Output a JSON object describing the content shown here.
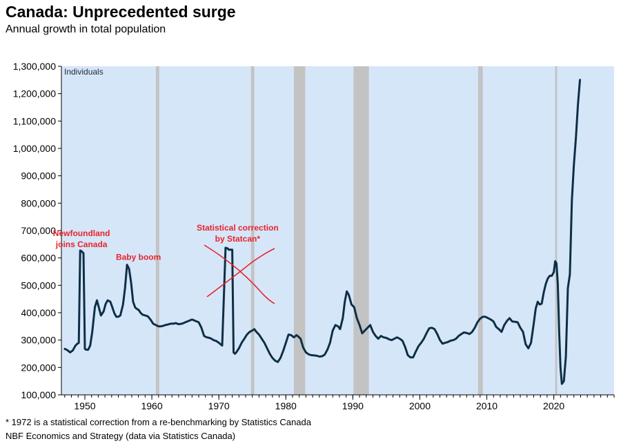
{
  "header": {
    "title": "Canada: Unprecedented surge",
    "subtitle": "Annual growth in total population"
  },
  "footer": {
    "note": "* 1972 is a statistical correction from a re-benchmarking by Statistics Canada",
    "source": "NBF Economics and Strategy (data via Statistics Canada)"
  },
  "colors": {
    "plot_background": "#d6e6f9",
    "recession_band": "#c3c3c3",
    "line": "#0d2f45",
    "annotation": "#e8232a"
  },
  "chart_data": {
    "type": "line",
    "title": "Canada: Unprecedented surge",
    "subtitle": "Annual growth in total population",
    "ylabel": "Individuals",
    "xlim": [
      1946.5,
      2029
    ],
    "ylim": [
      100000,
      1300000
    ],
    "x_ticks": [
      1950,
      1960,
      1970,
      1980,
      1990,
      2000,
      2010,
      2020
    ],
    "y_ticks": [
      100000,
      200000,
      300000,
      400000,
      500000,
      600000,
      700000,
      800000,
      900000,
      1000000,
      1100000,
      1200000,
      1300000
    ],
    "y_tick_labels": [
      "100,000",
      "200,000",
      "300,000",
      "400,000",
      "500,000",
      "600,000",
      "700,000",
      "800,000",
      "900,000",
      "1,000,000",
      "1,100,000",
      "1,200,000",
      "1,300,000"
    ],
    "grid": false,
    "recession_bands": [
      [
        1960.6,
        1961.1
      ],
      [
        1974.8,
        1975.3
      ],
      [
        1981.2,
        1982.9
      ],
      [
        1990.1,
        1992.4
      ],
      [
        2008.7,
        2009.4
      ],
      [
        2020.2,
        2020.5
      ]
    ],
    "annotations": [
      {
        "text_lines": [
          "Newfoundland",
          "joins Canada"
        ],
        "x": 1949.5,
        "y": 680000
      },
      {
        "text_lines": [
          "Baby boom"
        ],
        "x": 1958,
        "y": 593000
      },
      {
        "text_lines": [
          "Statistical correction",
          "by Statcan*"
        ],
        "x": 1972.8,
        "y": 700000
      }
    ],
    "series": [
      {
        "x": [
          1947,
          1947.4,
          1947.8,
          1948.2,
          1948.6,
          1948.9,
          1949.1,
          1949.3,
          1949.5,
          1949.8,
          1950,
          1950.2,
          1950.5,
          1950.8,
          1951.1,
          1951.5,
          1951.8,
          1952.1,
          1952.4,
          1952.8,
          1953.1,
          1953.4,
          1953.8,
          1954.1,
          1954.4,
          1954.7,
          1955,
          1955.3,
          1955.7,
          1956,
          1956.3,
          1956.6,
          1956.9,
          1957.2,
          1957.5,
          1957.7,
          1957.9,
          1958.1,
          1958.3,
          1958.6,
          1959,
          1959.4,
          1959.8,
          1960.2,
          1960.6,
          1961,
          1961.3,
          1961.7,
          1962,
          1962.4,
          1962.8,
          1963.2,
          1963.6,
          1964,
          1964.5,
          1965,
          1965.5,
          1966,
          1966.5,
          1967,
          1967.4,
          1967.8,
          1968.2,
          1968.6,
          1968.9,
          1969.2,
          1969.6,
          1970,
          1970.5,
          1971,
          1971.3,
          1971.5,
          1971.7,
          1972,
          1972.2,
          1972.4,
          1972.6,
          1973,
          1973.4,
          1973.8,
          1974.2,
          1974.6,
          1975,
          1975.3,
          1975.6,
          1976,
          1976.4,
          1976.8,
          1977.2,
          1977.6,
          1978,
          1978.4,
          1978.8,
          1979.2,
          1979.6,
          1980,
          1980.4,
          1980.8,
          1981.2,
          1981.6,
          1981.9,
          1982.2,
          1982.6,
          1983,
          1983.4,
          1983.8,
          1984.2,
          1984.6,
          1985,
          1985.4,
          1985.8,
          1986.2,
          1986.6,
          1987,
          1987.4,
          1987.8,
          1988.1,
          1988.5,
          1988.8,
          1989.1,
          1989.4,
          1989.8,
          1990.2,
          1990.6,
          1991,
          1991.4,
          1991.8,
          1992.2,
          1992.6,
          1993,
          1993.4,
          1993.8,
          1994.2,
          1994.6,
          1995,
          1995.4,
          1995.8,
          1996.2,
          1996.6,
          1997,
          1997.4,
          1997.8,
          1998.2,
          1998.6,
          1999,
          1999.4,
          1999.8,
          2000.2,
          2000.6,
          2001,
          2001.4,
          2001.8,
          2002.2,
          2002.6,
          2003,
          2003.4,
          2003.8,
          2004.2,
          2004.6,
          2005,
          2005.4,
          2005.8,
          2006.2,
          2006.6,
          2007,
          2007.4,
          2007.8,
          2008.2,
          2008.6,
          2009,
          2009.4,
          2009.8,
          2010.2,
          2010.6,
          2011,
          2011.4,
          2011.8,
          2012.2,
          2012.6,
          2013,
          2013.4,
          2013.8,
          2014.2,
          2014.6,
          2015,
          2015.4,
          2015.8,
          2016.2,
          2016.6,
          2017,
          2017.3,
          2017.6,
          2017.9,
          2018.2,
          2018.5,
          2018.8,
          2019.1,
          2019.4,
          2019.7,
          2020,
          2020.2,
          2020.4,
          2020.6,
          2020.8,
          2021,
          2021.2,
          2021.5,
          2021.8,
          2022.1,
          2022.4,
          2022.7,
          2023,
          2023.3,
          2023.6,
          2023.9
        ],
        "values": [
          268000,
          263000,
          255000,
          262000,
          280000,
          287000,
          290000,
          627000,
          625000,
          617000,
          268000,
          265000,
          265000,
          280000,
          330000,
          420000,
          445000,
          418000,
          390000,
          405000,
          432000,
          445000,
          440000,
          420000,
          398000,
          385000,
          385000,
          390000,
          430000,
          490000,
          575000,
          560000,
          510000,
          440000,
          420000,
          415000,
          412000,
          408000,
          400000,
          393000,
          390000,
          387000,
          375000,
          360000,
          355000,
          350000,
          350000,
          352000,
          355000,
          357000,
          360000,
          360000,
          362000,
          358000,
          360000,
          365000,
          370000,
          375000,
          370000,
          365000,
          345000,
          315000,
          310000,
          308000,
          305000,
          300000,
          297000,
          290000,
          280000,
          637000,
          635000,
          630000,
          630000,
          630000,
          255000,
          250000,
          255000,
          270000,
          290000,
          305000,
          320000,
          330000,
          335000,
          340000,
          330000,
          320000,
          305000,
          290000,
          270000,
          250000,
          235000,
          225000,
          220000,
          235000,
          260000,
          290000,
          320000,
          318000,
          310000,
          318000,
          312000,
          305000,
          272000,
          255000,
          248000,
          245000,
          244000,
          243000,
          240000,
          241000,
          247000,
          265000,
          290000,
          335000,
          355000,
          350000,
          340000,
          380000,
          440000,
          478000,
          465000,
          430000,
          420000,
          380000,
          355000,
          325000,
          335000,
          345000,
          355000,
          330000,
          315000,
          305000,
          315000,
          310000,
          308000,
          303000,
          300000,
          305000,
          310000,
          305000,
          298000,
          275000,
          245000,
          237000,
          237000,
          258000,
          278000,
          290000,
          305000,
          325000,
          343000,
          345000,
          340000,
          322000,
          300000,
          287000,
          290000,
          293000,
          298000,
          300000,
          305000,
          315000,
          322000,
          328000,
          326000,
          322000,
          330000,
          345000,
          365000,
          378000,
          385000,
          385000,
          380000,
          375000,
          368000,
          348000,
          340000,
          330000,
          355000,
          370000,
          380000,
          368000,
          367000,
          365000,
          345000,
          330000,
          285000,
          270000,
          290000,
          360000,
          415000,
          440000,
          430000,
          433000,
          475000,
          505000,
          525000,
          535000,
          535000,
          548000,
          588000,
          580000,
          505000,
          330000,
          200000,
          140000,
          150000,
          240000,
          490000,
          540000,
          810000,
          940000,
          1040000,
          1160000,
          1250000
        ]
      }
    ]
  }
}
